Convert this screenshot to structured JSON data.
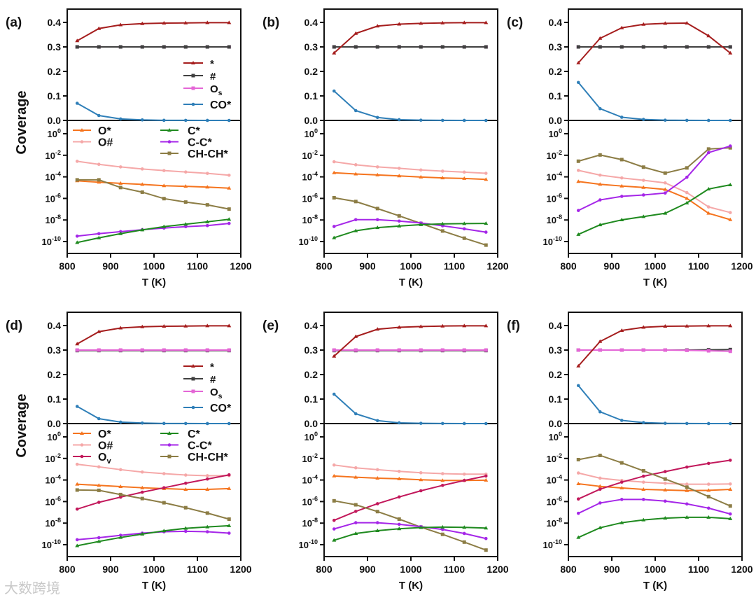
{
  "watermark": "大数跨境",
  "chart_data": {
    "type": "line",
    "x": [
      823,
      873,
      923,
      973,
      1023,
      1073,
      1123,
      1173
    ],
    "xlabel": "T (K)",
    "ylabel": "Coverage",
    "xlim": [
      800,
      1200
    ],
    "xticks": [
      "800",
      "900",
      "1000",
      "1100",
      "1200"
    ],
    "top_ylim": [
      0,
      0.45
    ],
    "top_yticks": [
      "0.0",
      "0.1",
      "0.2",
      "0.3",
      "0.4"
    ],
    "bottom_yscale": "log",
    "bottom_ylim_log10": [
      -11.1,
      1.2
    ],
    "bottom_yticks_exponents": [
      "0",
      "-2",
      "-4",
      "-6",
      "-8",
      "-10"
    ],
    "styles": {
      "*": {
        "color": "#a51d1d",
        "marker": "tri",
        "label": "*",
        "sub": ""
      },
      "#": {
        "color": "#404040",
        "marker": "sq",
        "label": "#",
        "sub": ""
      },
      "Os": {
        "color": "#e466d6",
        "marker": "sq",
        "label": "O",
        "sub": "s"
      },
      "CO*": {
        "color": "#2f7fb8",
        "marker": "circ",
        "label": "CO*",
        "sub": ""
      },
      "O*": {
        "color": "#f5741e",
        "marker": "tri",
        "label": "O*",
        "sub": ""
      },
      "O#": {
        "color": "#f5a8a8",
        "marker": "circ",
        "label": "O#",
        "sub": ""
      },
      "Ov": {
        "color": "#c2185b",
        "marker": "circ",
        "label": "O",
        "sub": "v"
      },
      "C*": {
        "color": "#1f8a1f",
        "marker": "tri",
        "label": "C*",
        "sub": ""
      },
      "C-C*": {
        "color": "#a526e8",
        "marker": "circ",
        "label": "C-C*",
        "sub": ""
      },
      "CH-CH*": {
        "color": "#8c7d45",
        "marker": "sq",
        "label": "CH-CH*",
        "sub": ""
      }
    },
    "panels": [
      {
        "label": "(a)",
        "legend_top": [
          "*",
          "#",
          "Os",
          "CO*"
        ],
        "legend_bottom": [
          [
            "O*",
            "O#"
          ],
          [
            "C*",
            "C-C*",
            "CH-CH*"
          ]
        ],
        "top": [
          {
            "key": "Os",
            "values": [
              0.3,
              0.3,
              0.3,
              0.3,
              0.3,
              0.3,
              0.3,
              0.3
            ]
          },
          {
            "key": "#",
            "values": [
              0.3,
              0.3,
              0.3,
              0.3,
              0.3,
              0.3,
              0.3,
              0.3
            ]
          },
          {
            "key": "*",
            "values": [
              0.325,
              0.375,
              0.39,
              0.395,
              0.397,
              0.398,
              0.399,
              0.399
            ]
          },
          {
            "key": "CO*",
            "values": [
              0.07,
              0.02,
              0.006,
              0.002,
              0.0005,
              0.0002,
              0.0001,
              0
            ]
          }
        ],
        "bottom_log10": [
          {
            "key": "O#",
            "values": [
              -2.56,
              -2.84,
              -3.08,
              -3.27,
              -3.42,
              -3.55,
              -3.68,
              -3.85
            ]
          },
          {
            "key": "O*",
            "values": [
              -4.37,
              -4.5,
              -4.6,
              -4.7,
              -4.82,
              -4.88,
              -4.95,
              -5.05
            ]
          },
          {
            "key": "CH-CH*",
            "values": [
              -4.28,
              -4.28,
              -4.99,
              -5.42,
              -6.02,
              -6.34,
              -6.6,
              -6.99
            ]
          },
          {
            "key": "C-C*",
            "values": [
              -9.5,
              -9.27,
              -9.08,
              -8.9,
              -8.75,
              -8.62,
              -8.52,
              -8.32
            ]
          },
          {
            "key": "C*",
            "values": [
              -10.09,
              -9.66,
              -9.27,
              -8.92,
              -8.62,
              -8.39,
              -8.17,
              -7.94
            ]
          }
        ]
      },
      {
        "label": "(b)",
        "top": [
          {
            "key": "Os",
            "values": [
              0.3,
              0.3,
              0.3,
              0.3,
              0.3,
              0.3,
              0.3,
              0.3
            ]
          },
          {
            "key": "#",
            "values": [
              0.3,
              0.3,
              0.3,
              0.3,
              0.3,
              0.3,
              0.3,
              0.3
            ]
          },
          {
            "key": "*",
            "values": [
              0.275,
              0.355,
              0.385,
              0.393,
              0.396,
              0.398,
              0.399,
              0.399
            ]
          },
          {
            "key": "CO*",
            "values": [
              0.12,
              0.04,
              0.012,
              0.003,
              0.001,
              0.0003,
              0.0001,
              0
            ]
          }
        ],
        "bottom_log10": [
          {
            "key": "O#",
            "values": [
              -2.6,
              -2.88,
              -3.08,
              -3.21,
              -3.36,
              -3.47,
              -3.56,
              -3.67
            ]
          },
          {
            "key": "O*",
            "values": [
              -3.62,
              -3.73,
              -3.82,
              -3.91,
              -4.02,
              -4.1,
              -4.15,
              -4.24
            ]
          },
          {
            "key": "CH-CH*",
            "values": [
              -5.94,
              -6.29,
              -6.94,
              -7.62,
              -8.32,
              -9.02,
              -9.69,
              -10.33
            ]
          },
          {
            "key": "C-C*",
            "values": [
              -8.6,
              -7.97,
              -7.97,
              -8.1,
              -8.28,
              -8.54,
              -8.82,
              -9.13
            ]
          },
          {
            "key": "C*",
            "values": [
              -9.65,
              -9.0,
              -8.71,
              -8.56,
              -8.43,
              -8.36,
              -8.34,
              -8.32
            ]
          }
        ]
      },
      {
        "label": "(c)",
        "top": [
          {
            "key": "Os",
            "values": [
              0.3,
              0.3,
              0.3,
              0.3,
              0.3,
              0.3,
              0.3,
              0.3
            ]
          },
          {
            "key": "#",
            "values": [
              0.3,
              0.3,
              0.3,
              0.3,
              0.3,
              0.3,
              0.3,
              0.3
            ]
          },
          {
            "key": "*",
            "values": [
              0.235,
              0.335,
              0.378,
              0.392,
              0.396,
              0.397,
              0.345,
              0.275
            ]
          },
          {
            "key": "CO*",
            "values": [
              0.155,
              0.048,
              0.013,
              0.004,
              0.001,
              0.0003,
              0.0001,
              0
            ]
          }
        ],
        "bottom_log10": [
          {
            "key": "O#",
            "values": [
              -3.4,
              -3.84,
              -4.1,
              -4.32,
              -4.56,
              -5.46,
              -6.79,
              -7.31
            ]
          },
          {
            "key": "O*",
            "values": [
              -4.43,
              -4.69,
              -4.85,
              -4.98,
              -5.17,
              -6.0,
              -7.38,
              -7.97
            ]
          },
          {
            "key": "CH-CH*",
            "values": [
              -2.55,
              -1.97,
              -2.4,
              -3.1,
              -3.65,
              -3.17,
              -1.42,
              -1.31
            ]
          },
          {
            "key": "C-C*",
            "values": [
              -7.12,
              -6.14,
              -5.81,
              -5.68,
              -5.5,
              -4.04,
              -1.75,
              -1.14
            ]
          },
          {
            "key": "C*",
            "values": [
              -9.34,
              -8.45,
              -7.99,
              -7.69,
              -7.38,
              -6.42,
              -5.13,
              -4.74
            ]
          }
        ]
      },
      {
        "label": "(d)",
        "legend_top": [
          "*",
          "#",
          "Os",
          "CO*"
        ],
        "legend_bottom": [
          [
            "O*",
            "O#",
            "Ov"
          ],
          [
            "C*",
            "C-C*",
            "CH-CH*"
          ]
        ],
        "top": [
          {
            "key": "#",
            "values": [
              0.298,
              0.298,
              0.298,
              0.298,
              0.298,
              0.298,
              0.298,
              0.298
            ]
          },
          {
            "key": "Os",
            "values": [
              0.3,
              0.3,
              0.3,
              0.3,
              0.3,
              0.3,
              0.3,
              0.3
            ]
          },
          {
            "key": "*",
            "values": [
              0.325,
              0.375,
              0.39,
              0.395,
              0.397,
              0.398,
              0.399,
              0.399
            ]
          },
          {
            "key": "CO*",
            "values": [
              0.07,
              0.02,
              0.006,
              0.002,
              0.0005,
              0.0002,
              0.0001,
              0
            ]
          }
        ],
        "bottom_log10": [
          {
            "key": "O#",
            "values": [
              -2.54,
              -2.78,
              -3.04,
              -3.26,
              -3.41,
              -3.54,
              -3.6,
              -3.59
            ]
          },
          {
            "key": "O*",
            "values": [
              -4.39,
              -4.5,
              -4.61,
              -4.72,
              -4.8,
              -4.87,
              -4.87,
              -4.8
            ]
          },
          {
            "key": "Ov",
            "values": [
              -6.7,
              -6.07,
              -5.59,
              -5.13,
              -4.72,
              -4.3,
              -3.91,
              -3.52
            ]
          },
          {
            "key": "CH-CH*",
            "values": [
              -4.93,
              -4.96,
              -5.35,
              -5.72,
              -6.11,
              -6.57,
              -7.07,
              -7.63
            ]
          },
          {
            "key": "C-C*",
            "values": [
              -9.54,
              -9.35,
              -9.13,
              -8.93,
              -8.8,
              -8.76,
              -8.8,
              -8.93
            ]
          },
          {
            "key": "C*",
            "values": [
              -10.1,
              -9.7,
              -9.33,
              -9.02,
              -8.72,
              -8.48,
              -8.35,
              -8.24
            ]
          }
        ]
      },
      {
        "label": "(e)",
        "top": [
          {
            "key": "#",
            "values": [
              0.298,
              0.298,
              0.298,
              0.298,
              0.298,
              0.298,
              0.298,
              0.298
            ]
          },
          {
            "key": "Os",
            "values": [
              0.3,
              0.3,
              0.3,
              0.3,
              0.3,
              0.3,
              0.3,
              0.3
            ]
          },
          {
            "key": "*",
            "values": [
              0.275,
              0.355,
              0.385,
              0.393,
              0.396,
              0.398,
              0.399,
              0.399
            ]
          },
          {
            "key": "CO*",
            "values": [
              0.12,
              0.04,
              0.012,
              0.003,
              0.001,
              0.0003,
              0.0001,
              0
            ]
          }
        ],
        "bottom_log10": [
          {
            "key": "O#",
            "values": [
              -2.61,
              -2.87,
              -3.04,
              -3.2,
              -3.33,
              -3.41,
              -3.46,
              -3.46
            ]
          },
          {
            "key": "O*",
            "values": [
              -3.63,
              -3.74,
              -3.83,
              -3.89,
              -3.98,
              -4.04,
              -4.04,
              -4.02
            ]
          },
          {
            "key": "Ov",
            "values": [
              -7.74,
              -6.91,
              -6.2,
              -5.57,
              -5.0,
              -4.5,
              -4.04,
              -3.63
            ]
          },
          {
            "key": "CH-CH*",
            "values": [
              -5.93,
              -6.3,
              -6.93,
              -7.63,
              -8.37,
              -9.04,
              -9.76,
              -10.5
            ]
          },
          {
            "key": "C-C*",
            "values": [
              -8.54,
              -7.96,
              -7.96,
              -8.11,
              -8.33,
              -8.59,
              -8.96,
              -9.43
            ]
          },
          {
            "key": "C*",
            "values": [
              -9.59,
              -8.96,
              -8.7,
              -8.52,
              -8.41,
              -8.37,
              -8.39,
              -8.46
            ]
          }
        ]
      },
      {
        "label": "(f)",
        "top": [
          {
            "key": "#",
            "values": [
              0.3,
              0.3,
              0.3,
              0.3,
              0.3,
              0.3,
              0.301,
              0.302
            ]
          },
          {
            "key": "Os",
            "values": [
              0.3,
              0.3,
              0.3,
              0.3,
              0.3,
              0.299,
              0.297,
              0.295
            ]
          },
          {
            "key": "*",
            "values": [
              0.235,
              0.335,
              0.38,
              0.393,
              0.397,
              0.398,
              0.399,
              0.399
            ]
          },
          {
            "key": "CO*",
            "values": [
              0.155,
              0.048,
              0.013,
              0.004,
              0.001,
              0.0003,
              0.0001,
              0
            ]
          }
        ],
        "bottom_log10": [
          {
            "key": "O#",
            "values": [
              -3.35,
              -3.83,
              -4.04,
              -4.2,
              -4.3,
              -4.39,
              -4.39,
              -4.37
            ]
          },
          {
            "key": "O*",
            "values": [
              -4.35,
              -4.59,
              -4.74,
              -4.87,
              -4.93,
              -4.98,
              -4.96,
              -4.87
            ]
          },
          {
            "key": "Ov",
            "values": [
              -5.76,
              -4.85,
              -4.2,
              -3.65,
              -3.22,
              -2.8,
              -2.46,
              -2.17
            ]
          },
          {
            "key": "CH-CH*",
            "values": [
              -2.11,
              -1.72,
              -2.41,
              -3.15,
              -3.91,
              -4.67,
              -5.54,
              -6.41
            ]
          },
          {
            "key": "C-C*",
            "values": [
              -7.09,
              -6.13,
              -5.8,
              -5.8,
              -5.96,
              -6.22,
              -6.61,
              -7.15
            ]
          },
          {
            "key": "C*",
            "values": [
              -9.33,
              -8.43,
              -7.96,
              -7.7,
              -7.54,
              -7.46,
              -7.46,
              -7.59
            ]
          }
        ]
      }
    ]
  }
}
